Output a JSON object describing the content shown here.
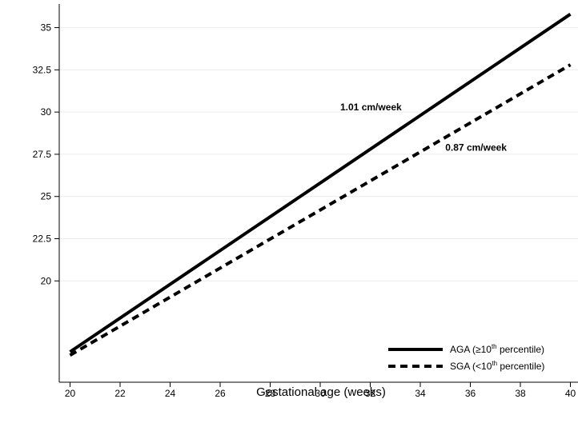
{
  "chart_data": {
    "type": "line",
    "xlabel": "Gestational age (weeks)",
    "ylabel": "",
    "xlim": [
      20,
      40
    ],
    "ylim": [
      14,
      36.4
    ],
    "x_ticks": [
      20,
      22,
      24,
      26,
      28,
      30,
      32,
      34,
      36,
      38,
      40
    ],
    "y_ticks": [
      20,
      22.5,
      25,
      27.5,
      30,
      32.5,
      35
    ],
    "y_tick_labels": [
      "20",
      "22.5",
      "25",
      "27.5",
      "30",
      "32.5",
      "35"
    ],
    "grid": "horizontal",
    "series": [
      {
        "name": "AGA",
        "legend": {
          "prefix": "AGA (≥10",
          "sup": "th",
          "suffix": " percentile)"
        },
        "style": "solid",
        "color": "#000000",
        "x": [
          20,
          40
        ],
        "y": [
          15.8,
          35.8
        ]
      },
      {
        "name": "SGA",
        "legend": {
          "prefix": "SGA (<10",
          "sup": "th",
          "suffix": " percentile)"
        },
        "style": "dashed",
        "color": "#000000",
        "x": [
          20,
          40
        ],
        "y": [
          15.6,
          32.8
        ]
      }
    ],
    "annotations": [
      {
        "text": "1.01 cm/week",
        "x": 30.8,
        "y": 30.1
      },
      {
        "text": "0.87 cm/week",
        "x": 35.0,
        "y": 27.7
      }
    ],
    "legend_position": "bottom-right"
  }
}
